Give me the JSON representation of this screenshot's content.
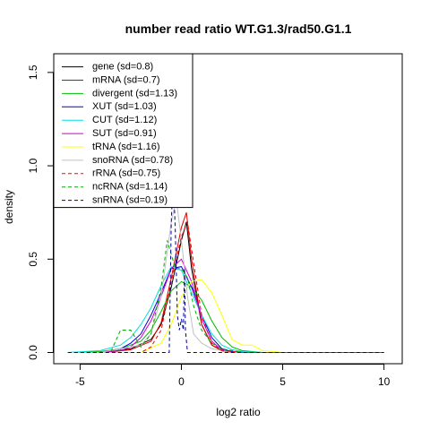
{
  "chart_data": {
    "type": "line",
    "title": "number read ratio WT.G1.3/rad50.G1.1",
    "xlabel": "log2 ratio",
    "ylabel": "density",
    "xlim": [
      -6.3,
      10.9
    ],
    "ylim": [
      -0.06,
      1.6
    ],
    "xticks": [
      -5,
      0,
      5,
      10
    ],
    "xtick_labels": [
      "-5",
      "0",
      "5",
      "10"
    ],
    "yticks": [
      0.0,
      0.5,
      1.0,
      1.5
    ],
    "ytick_labels": [
      "0.0",
      "0.5",
      "1.0",
      "1.5"
    ],
    "grid": false,
    "legend_position": "top-left",
    "series": [
      {
        "name": "gene (sd=0.8)",
        "color": "#000000",
        "dash": "solid",
        "x": [
          -5.6,
          -4.5,
          -3.5,
          -2.5,
          -1.5,
          -1.0,
          -0.5,
          0.0,
          0.25,
          0.5,
          1.0,
          1.5,
          2.0,
          2.5,
          3.5,
          5.0,
          7.5,
          10.0
        ],
        "y": [
          0,
          0,
          0.005,
          0.02,
          0.07,
          0.15,
          0.35,
          0.6,
          0.7,
          0.45,
          0.15,
          0.04,
          0.01,
          0,
          0,
          0,
          0,
          0
        ]
      },
      {
        "name": "mRNA (sd=0.7)",
        "color": "#dd0000",
        "dash": "solid",
        "x": [
          -5.6,
          -4.5,
          -3.5,
          -2.5,
          -1.5,
          -1.0,
          -0.5,
          0.0,
          0.25,
          0.5,
          1.0,
          1.5,
          2.0,
          2.5,
          3.5,
          5.0,
          7.5,
          10.0
        ],
        "y": [
          0,
          0,
          0.003,
          0.015,
          0.06,
          0.16,
          0.4,
          0.67,
          0.75,
          0.5,
          0.15,
          0.04,
          0.008,
          0,
          0,
          0,
          0,
          0
        ]
      },
      {
        "name": "divergent (sd=1.13)",
        "color": "#00bb00",
        "dash": "solid",
        "x": [
          -5.6,
          -4.0,
          -3.0,
          -2.0,
          -1.5,
          -1.0,
          -0.5,
          0.0,
          0.5,
          1.0,
          1.5,
          2.0,
          2.5,
          3.0,
          4.0,
          5.0,
          7.5,
          10.0
        ],
        "y": [
          0,
          0.005,
          0.02,
          0.06,
          0.12,
          0.22,
          0.33,
          0.38,
          0.35,
          0.28,
          0.17,
          0.08,
          0.03,
          0.01,
          0,
          0,
          0,
          0
        ]
      },
      {
        "name": "XUT (sd=1.03)",
        "color": "#0000dd",
        "dash": "solid",
        "x": [
          -5.6,
          -4.0,
          -3.0,
          -2.5,
          -2.0,
          -1.5,
          -1.0,
          -0.5,
          0.0,
          0.5,
          1.0,
          1.5,
          2.0,
          2.5,
          3.5,
          5.0,
          7.5,
          10.0
        ],
        "y": [
          0,
          0,
          0.02,
          0.05,
          0.1,
          0.2,
          0.32,
          0.45,
          0.46,
          0.35,
          0.2,
          0.08,
          0.02,
          0.005,
          0,
          0,
          0,
          0
        ]
      },
      {
        "name": "CUT (sd=1.12)",
        "color": "#00dddd",
        "dash": "solid",
        "x": [
          -5.6,
          -4.0,
          -3.0,
          -2.5,
          -2.0,
          -1.5,
          -1.0,
          -0.5,
          0.0,
          0.5,
          1.0,
          1.5,
          2.0,
          2.5,
          3.0,
          4.0,
          7.5,
          10.0
        ],
        "y": [
          0,
          0.01,
          0.04,
          0.08,
          0.15,
          0.24,
          0.36,
          0.46,
          0.44,
          0.32,
          0.2,
          0.1,
          0.04,
          0.015,
          0.005,
          0,
          0,
          0
        ]
      },
      {
        "name": "SUT (sd=0.91)",
        "color": "#cc00cc",
        "dash": "solid",
        "x": [
          -5.6,
          -4.0,
          -3.0,
          -2.5,
          -2.0,
          -1.5,
          -1.0,
          -0.5,
          0.0,
          0.5,
          1.0,
          1.5,
          2.0,
          2.5,
          3.5,
          5.0,
          7.5,
          10.0
        ],
        "y": [
          0,
          0,
          0.01,
          0.03,
          0.08,
          0.17,
          0.3,
          0.45,
          0.5,
          0.38,
          0.18,
          0.06,
          0.015,
          0,
          0,
          0,
          0,
          0
        ]
      },
      {
        "name": "tRNA (sd=1.16)",
        "color": "#ffff00",
        "dash": "solid",
        "x": [
          -5.6,
          -2.0,
          -1.0,
          -0.5,
          0.0,
          0.5,
          1.0,
          1.5,
          2.0,
          2.5,
          3.0,
          3.5,
          4.0,
          5.0,
          7.5,
          10.0
        ],
        "y": [
          0,
          0,
          0.05,
          0.15,
          0.3,
          0.38,
          0.39,
          0.32,
          0.2,
          0.07,
          0.04,
          0.04,
          0.01,
          0,
          0,
          0
        ]
      },
      {
        "name": "snoRNA (sd=0.78)",
        "color": "#c0c0c0",
        "dash": "solid",
        "x": [
          -5.6,
          -4.0,
          -3.5,
          -3.0,
          -2.0,
          -1.5,
          -1.0,
          -0.5,
          -0.25,
          0.0,
          0.3,
          0.6,
          1.0,
          1.5,
          2.5,
          5.0,
          10.0
        ],
        "y": [
          0,
          0,
          0.01,
          0.02,
          0.04,
          0.1,
          0.3,
          0.7,
          0.82,
          0.6,
          0.3,
          0.1,
          0.05,
          0.02,
          0,
          0,
          0
        ]
      },
      {
        "name": "rRNA (sd=0.75)",
        "color": "#ff0000",
        "dash": "dashed",
        "x": [
          -5.6,
          -2.0,
          -1.5,
          -1.0,
          -0.5,
          0.0,
          0.3,
          0.6,
          1.0,
          1.5,
          2.0,
          3.0,
          5.0,
          10.0
        ],
        "y": [
          0,
          0,
          0.03,
          0.12,
          0.38,
          0.62,
          0.7,
          0.48,
          0.2,
          0.05,
          0.01,
          0,
          0,
          0
        ]
      },
      {
        "name": "ncRNA (sd=1.14)",
        "color": "#00aa00",
        "dash": "dashed",
        "x": [
          -5.6,
          -3.5,
          -3.0,
          -2.5,
          -2.0,
          -1.5,
          -1.0,
          -0.7,
          -0.3,
          0.0,
          0.3,
          0.6,
          1.0,
          1.5,
          2.0,
          2.5,
          3.0,
          5.0,
          10.0
        ],
        "y": [
          0,
          0,
          0.12,
          0.12,
          0.03,
          0.1,
          0.35,
          0.6,
          0.45,
          0.45,
          0.4,
          0.25,
          0.12,
          0.05,
          0.02,
          0.01,
          0,
          0,
          0
        ]
      },
      {
        "name": "snRNA (sd=0.19)",
        "color": "#000099",
        "dash": "dashed",
        "x": [
          -5.6,
          -0.6,
          -0.5,
          -0.4,
          -0.3,
          -0.2,
          -0.1,
          0.0,
          0.1,
          0.15,
          0.2,
          0.3,
          0.4,
          10.0
        ],
        "y": [
          0,
          0,
          0.7,
          0.95,
          0.65,
          0.2,
          0.12,
          0.18,
          0.12,
          0.45,
          0.12,
          0,
          0,
          0
        ]
      }
    ]
  }
}
